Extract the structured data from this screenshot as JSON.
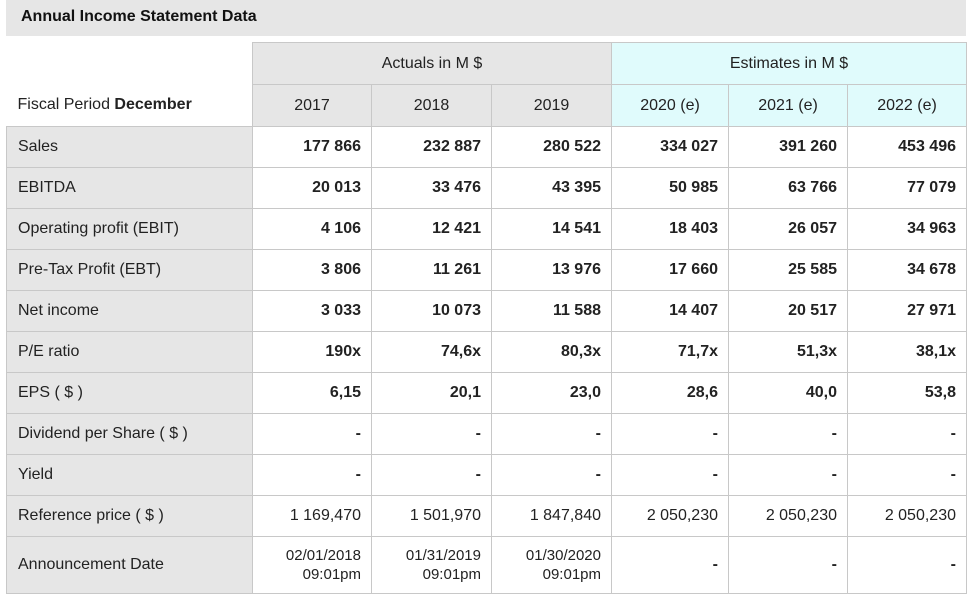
{
  "title": "Annual Income Statement Data",
  "header": {
    "period_prefix": "Fiscal Period ",
    "period_month": "December",
    "actuals_label": "Actuals in M $",
    "estimates_label": "Estimates in M $",
    "years": [
      "2017",
      "2018",
      "2019",
      "2020 (e)",
      "2021 (e)",
      "2022 (e)"
    ]
  },
  "rows": [
    {
      "label": "Sales",
      "values": [
        "177 866",
        "232 887",
        "280 522",
        "334 027",
        "391 260",
        "453 496"
      ]
    },
    {
      "label": "EBITDA",
      "values": [
        "20 013",
        "33 476",
        "43 395",
        "50 985",
        "63 766",
        "77 079"
      ]
    },
    {
      "label": "Operating profit (EBIT)",
      "values": [
        "4 106",
        "12 421",
        "14 541",
        "18 403",
        "26 057",
        "34 963"
      ]
    },
    {
      "label": "Pre-Tax Profit (EBT)",
      "values": [
        "3 806",
        "11 261",
        "13 976",
        "17 660",
        "25 585",
        "34 678"
      ]
    },
    {
      "label": "Net income",
      "values": [
        "3 033",
        "10 073",
        "11 588",
        "14 407",
        "20 517",
        "27 971"
      ]
    },
    {
      "label": "P/E ratio",
      "values": [
        "190x",
        "74,6x",
        "80,3x",
        "71,7x",
        "51,3x",
        "38,1x"
      ]
    },
    {
      "label": "EPS ( $ )",
      "values": [
        "6,15",
        "20,1",
        "23,0",
        "28,6",
        "40,0",
        "53,8"
      ]
    },
    {
      "label": "Dividend per Share ( $ )",
      "values": [
        "-",
        "-",
        "-",
        "-",
        "-",
        "-"
      ]
    },
    {
      "label": "Yield",
      "values": [
        "-",
        "-",
        "-",
        "-",
        "-",
        "-"
      ]
    },
    {
      "label": "Reference price ( $ )",
      "values": [
        "1 169,470",
        "1 501,970",
        "1 847,840",
        "2 050,230",
        "2 050,230",
        "2 050,230"
      ]
    },
    {
      "label": "Announcement Date",
      "values": [
        [
          "02/01/2018",
          "09:01pm"
        ],
        [
          "01/31/2019",
          "09:01pm"
        ],
        [
          "01/30/2020",
          "09:01pm"
        ],
        "-",
        "-",
        "-"
      ]
    }
  ]
}
